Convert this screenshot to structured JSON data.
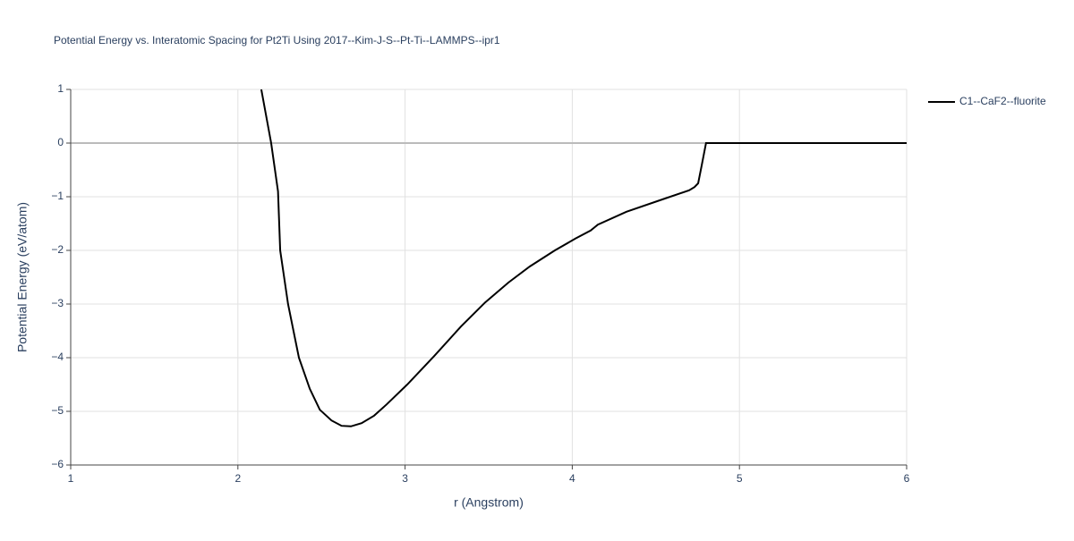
{
  "chart_data": {
    "type": "line",
    "title": "Potential Energy vs. Interatomic Spacing for Pt2Ti Using 2017--Kim-J-S--Pt-Ti--LAMMPS--ipr1",
    "x_label": "r (Angstrom)",
    "y_label": "Potential Energy (eV/atom)",
    "xlim": [
      1,
      6
    ],
    "ylim": [
      -6,
      1
    ],
    "xticks": [
      1,
      2,
      3,
      4,
      5,
      6
    ],
    "yticks": [
      1,
      0,
      {
        "value": -1,
        "label": "−1"
      },
      {
        "value": -2,
        "label": "−2"
      },
      {
        "value": -3,
        "label": "−3"
      },
      {
        "value": -4,
        "label": "−4"
      },
      {
        "value": -5,
        "label": "−5"
      },
      {
        "value": -6,
        "label": "−6"
      }
    ],
    "grid": true,
    "legend": "top-right",
    "series": [
      {
        "name": "C1--CaF2--fluorite",
        "color": "#000000",
        "x": [
          2.14,
          2.199,
          2.24,
          2.253,
          2.3,
          2.365,
          2.43,
          2.49,
          2.56,
          2.62,
          2.676,
          2.74,
          2.815,
          2.89,
          3.013,
          3.174,
          3.334,
          3.479,
          3.618,
          3.746,
          3.896,
          4.019,
          4.11,
          4.153,
          4.324,
          4.539,
          4.699,
          4.731,
          4.753,
          4.774,
          4.8,
          6.0
        ],
        "values": [
          1,
          0,
          -0.9,
          -2,
          -3,
          -4,
          -4.58,
          -4.97,
          -5.17,
          -5.27,
          -5.28,
          -5.22,
          -5.08,
          -4.87,
          -4.5,
          -3.97,
          -3.42,
          -2.97,
          -2.6,
          -2.3,
          -2.0,
          -1.78,
          -1.63,
          -1.52,
          -1.28,
          -1.05,
          -0.88,
          -0.82,
          -0.75,
          -0.42,
          0,
          0
        ]
      }
    ]
  }
}
